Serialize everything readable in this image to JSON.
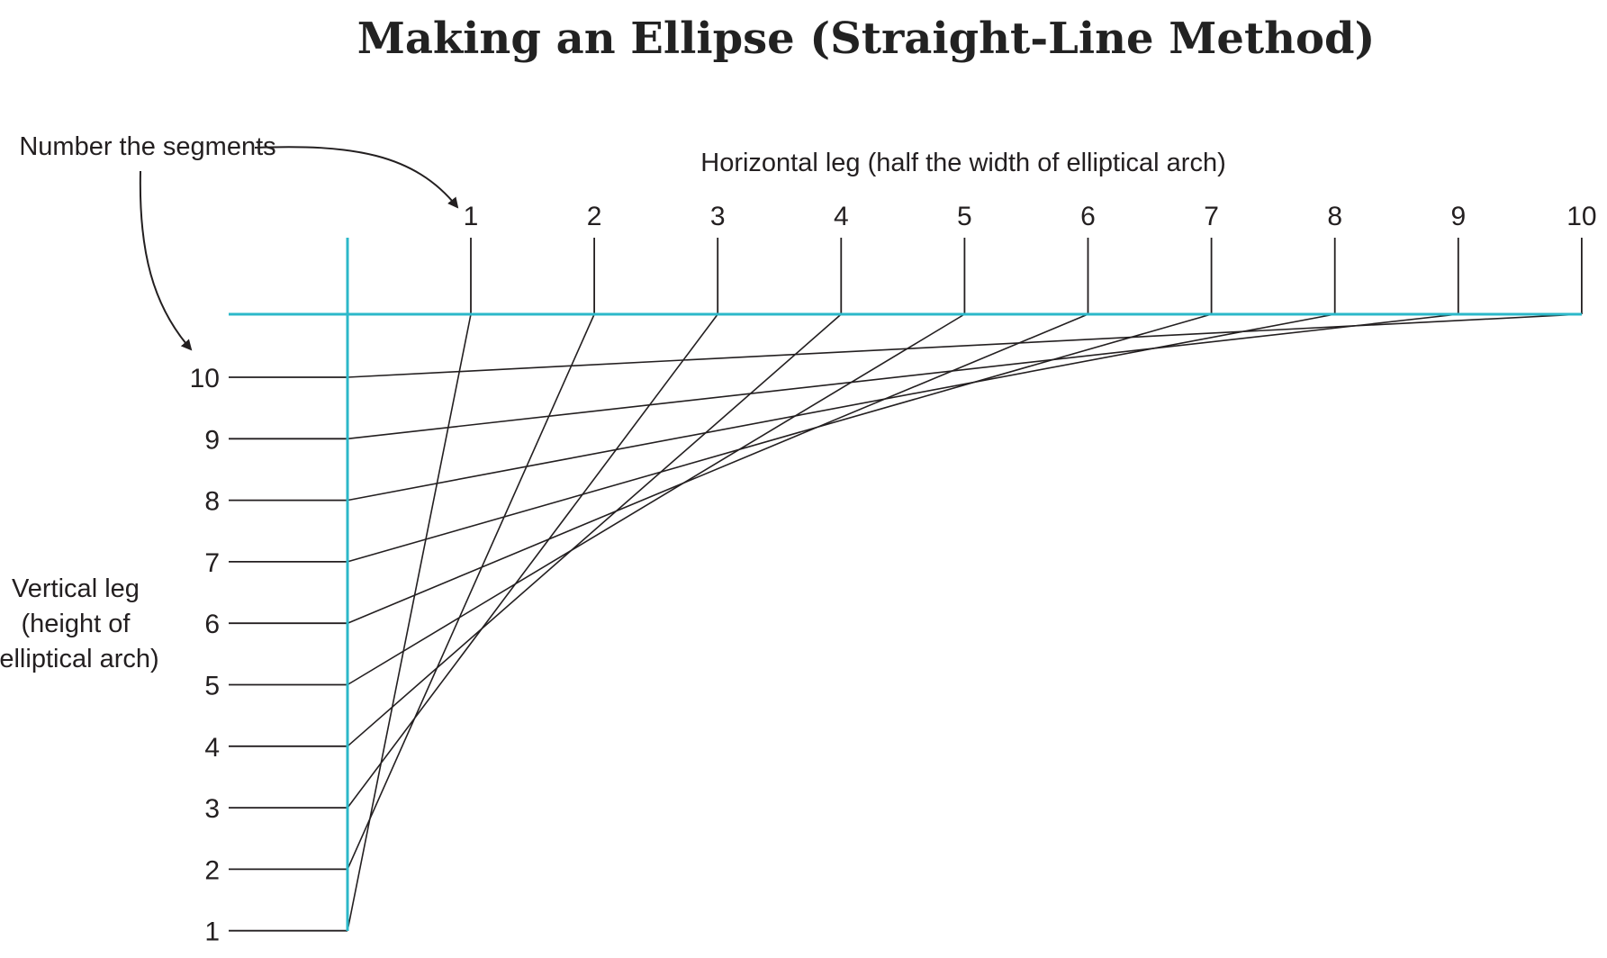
{
  "title": "Making an Ellipse (Straight-Line Method)",
  "callout": "Number the segments",
  "horizontal_leg_label": "Horizontal leg (half the width of elliptical arch)",
  "vertical_leg_label": [
    "Vertical leg",
    "(height of",
    "elliptical arch)"
  ],
  "horizontal_numbers": [
    "1",
    "2",
    "3",
    "4",
    "5",
    "6",
    "7",
    "8",
    "9",
    "10"
  ],
  "vertical_numbers": [
    "10",
    "9",
    "8",
    "7",
    "6",
    "5",
    "4",
    "3",
    "2",
    "1"
  ],
  "colors": {
    "axis": "#2cb8c9",
    "ink": "#231f20"
  }
}
